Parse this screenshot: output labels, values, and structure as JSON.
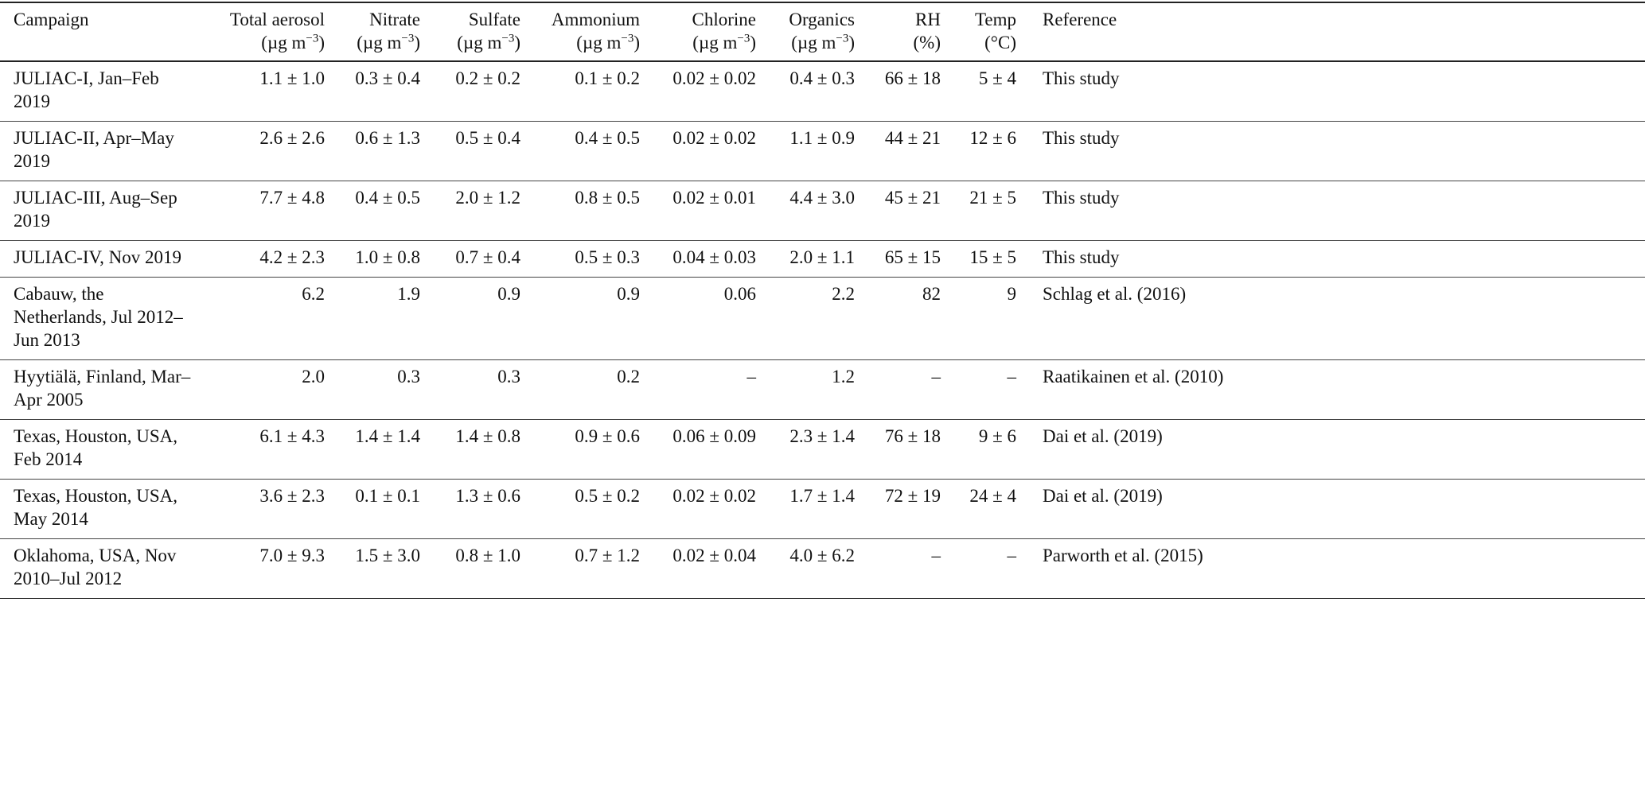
{
  "table": {
    "headers": [
      {
        "label": "Campaign",
        "unit": ""
      },
      {
        "label": "Total aerosol",
        "unit": "(µg m⁻³)"
      },
      {
        "label": "Nitrate",
        "unit": "(µg m⁻³)"
      },
      {
        "label": "Sulfate",
        "unit": "(µg m⁻³)"
      },
      {
        "label": "Ammonium",
        "unit": "(µg m⁻³)"
      },
      {
        "label": "Chlorine",
        "unit": "(µg m⁻³)"
      },
      {
        "label": "Organics",
        "unit": "(µg m⁻³)"
      },
      {
        "label": "RH",
        "unit": "(%)"
      },
      {
        "label": "Temp",
        "unit": "(°C)"
      },
      {
        "label": "Reference",
        "unit": ""
      }
    ],
    "rows": [
      [
        "JULIAC-I, Jan–Feb 2019",
        "1.1 ± 1.0",
        "0.3 ± 0.4",
        "0.2 ± 0.2",
        "0.1 ± 0.2",
        "0.02 ± 0.02",
        "0.4 ± 0.3",
        "66 ± 18",
        "5 ± 4",
        "This study"
      ],
      [
        "JULIAC-II, Apr–May 2019",
        "2.6 ± 2.6",
        "0.6 ± 1.3",
        "0.5 ± 0.4",
        "0.4 ± 0.5",
        "0.02 ± 0.02",
        "1.1 ± 0.9",
        "44 ± 21",
        "12 ± 6",
        "This study"
      ],
      [
        "JULIAC-III, Aug–Sep 2019",
        "7.7 ± 4.8",
        "0.4 ± 0.5",
        "2.0 ± 1.2",
        "0.8 ± 0.5",
        "0.02 ± 0.01",
        "4.4 ± 3.0",
        "45 ± 21",
        "21 ± 5",
        "This study"
      ],
      [
        "JULIAC-IV, Nov 2019",
        "4.2 ± 2.3",
        "1.0 ± 0.8",
        "0.7 ± 0.4",
        "0.5 ± 0.3",
        "0.04 ± 0.03",
        "2.0 ± 1.1",
        "65 ± 15",
        "15 ± 5",
        "This study"
      ],
      [
        "Cabauw, the Netherlands, Jul 2012–Jun 2013",
        "6.2",
        "1.9",
        "0.9",
        "0.9",
        "0.06",
        "2.2",
        "82",
        "9",
        "Schlag et al. (2016)"
      ],
      [
        "Hyytiälä, Finland, Mar–Apr 2005",
        "2.0",
        "0.3",
        "0.3",
        "0.2",
        "–",
        "1.2",
        "–",
        "–",
        "Raatikainen et al. (2010)"
      ],
      [
        "Texas, Houston, USA, Feb 2014",
        "6.1 ± 4.3",
        "1.4 ± 1.4",
        "1.4 ± 0.8",
        "0.9 ± 0.6",
        "0.06 ± 0.09",
        "2.3 ± 1.4",
        "76 ± 18",
        "9 ± 6",
        "Dai et al. (2019)"
      ],
      [
        "Texas, Houston, USA, May 2014",
        "3.6 ± 2.3",
        "0.1 ± 0.1",
        "1.3 ± 0.6",
        "0.5 ± 0.2",
        "0.02 ± 0.02",
        "1.7 ± 1.4",
        "72 ± 19",
        "24 ± 4",
        "Dai et al. (2019)"
      ],
      [
        "Oklahoma, USA, Nov 2010–Jul 2012",
        "7.0 ± 9.3",
        "1.5 ± 3.0",
        "0.8 ± 1.0",
        "0.7 ± 1.2",
        "0.02 ± 0.04",
        "4.0 ± 6.2",
        "–",
        "–",
        "Parworth et al. (2015)"
      ]
    ]
  }
}
